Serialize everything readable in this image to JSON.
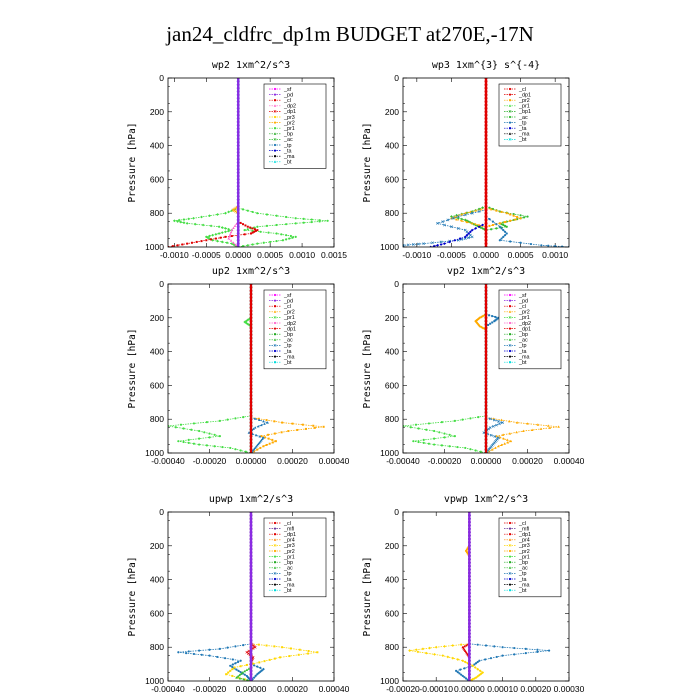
{
  "page": {
    "title": "jan24_cldfrc_dp1m  BUDGET at270E,-17N"
  },
  "colors": {
    "sf": "#ff00ff",
    "pd": "#8a2be2",
    "cl": "#e00000",
    "dp1": "#e00000",
    "dp2": "#ff66cc",
    "pr1": "#44dd44",
    "pr2": "#ffaa00",
    "pr3": "#ffd700",
    "pr4": "#ff8800",
    "bp": "#22aa22",
    "bp1": "#22aa22",
    "ac": "#33bb33",
    "tp": "#1f77b4",
    "ta": "#0000cc",
    "ma": "#000000",
    "bt": "#00dddd",
    "mfl": "#663399"
  },
  "chart_data": [
    {
      "type": "line",
      "title": "wp2   1xm^2/s^3",
      "ylabel": "Pressure [hPa]",
      "ylim": [
        1000,
        0
      ],
      "xlim": [
        -0.0011,
        0.0015
      ],
      "yticks": [
        "0",
        "200",
        "400",
        "600",
        "800",
        "1000"
      ],
      "xticks": [
        {
          "v": -0.001,
          "t": "-0.0010"
        },
        {
          "v": -0.0005,
          "t": "-0.0005"
        },
        {
          "v": 0,
          "t": "0.0000"
        },
        {
          "v": 0.0005,
          "t": "0.0005"
        },
        {
          "v": 0.001,
          "t": "0.0010"
        },
        {
          "v": 0.0015,
          "t": "0.0015"
        }
      ],
      "legend": [
        "_sf",
        "_pd",
        "_cl",
        "_dp2",
        "_dp1",
        "_pr3",
        "_pr2",
        "_pr1",
        "_bp",
        "_ac",
        "_tp",
        "_ta",
        "_ma",
        "_bt"
      ],
      "series": [
        {
          "key": "pr1",
          "p": [
            770,
            800,
            830,
            845,
            860,
            880,
            900,
            920,
            940,
            960,
            980,
            1000
          ],
          "x": [
            0,
            0.0003,
            0.0009,
            0.0014,
            0.0009,
            0.0003,
            0.0001,
            0.0006,
            0.0009,
            0.0007,
            0.0003,
            0
          ]
        },
        {
          "key": "pr1",
          "p": [
            770,
            800,
            830,
            845,
            860,
            880,
            900,
            920,
            940,
            960,
            980,
            1000
          ],
          "x": [
            0,
            -0.0002,
            -0.0007,
            -0.001,
            -0.0008,
            -0.0003,
            -0.0001,
            -0.0003,
            -0.0005,
            -0.0004,
            -0.0001,
            0
          ]
        },
        {
          "key": "cl",
          "p": [
            850,
            880,
            900,
            920,
            940,
            960,
            980,
            1000
          ],
          "x": [
            0,
            0.00015,
            0.0003,
            0.0002,
            -0.0002,
            -0.0005,
            -0.0008,
            -0.0011
          ]
        },
        {
          "key": "dp2",
          "p": [
            850,
            900,
            950,
            1000
          ],
          "x": [
            0,
            -0.0001,
            -0.00015,
            0
          ]
        },
        {
          "key": "pr2",
          "p": [
            760,
            780,
            800
          ],
          "x": [
            0,
            -8e-05,
            0
          ]
        },
        {
          "key": "bt",
          "p": [
            0,
            200,
            400,
            600,
            800,
            1000
          ],
          "x": [
            0,
            0,
            0,
            0,
            0,
            0
          ]
        },
        {
          "key": "pd",
          "p": [
            0,
            200,
            400,
            600,
            800,
            1000
          ],
          "x": [
            0,
            0,
            0,
            0,
            0,
            0
          ]
        }
      ]
    },
    {
      "type": "line",
      "title": "wp3   1xm^{3} s^{-4}",
      "ylabel": "Pressure [hPa]",
      "ylim": [
        1000,
        0
      ],
      "xlim": [
        -0.0012,
        0.0012
      ],
      "yticks": [
        "0",
        "200",
        "400",
        "600",
        "800",
        "1000"
      ],
      "xticks": [
        {
          "v": -0.001,
          "t": "-0.0010"
        },
        {
          "v": -0.0005,
          "t": "-0.0005"
        },
        {
          "v": 0,
          "t": "0.0000"
        },
        {
          "v": 0.0005,
          "t": "0.0005"
        },
        {
          "v": 0.001,
          "t": "0.0010"
        }
      ],
      "legend": [
        "_cl",
        "_dp1",
        "_pr2",
        "_pr1",
        "_bp1",
        "_ac",
        "_tp",
        "_ta",
        "_ma",
        "_bt"
      ],
      "series": [
        {
          "key": "ac",
          "p": [
            760,
            790,
            820,
            840,
            860,
            880,
            900
          ],
          "x": [
            0,
            0.0002,
            0.0006,
            0.0004,
            0.0002,
            0.0003,
            0
          ]
        },
        {
          "key": "ac",
          "p": [
            760,
            790,
            820,
            840,
            860,
            880,
            900
          ],
          "x": [
            0,
            -0.0002,
            -0.0005,
            -0.0003,
            -0.0002,
            -0.0001,
            0
          ]
        },
        {
          "key": "pr2",
          "p": [
            770,
            800,
            830,
            860,
            880
          ],
          "x": [
            0,
            0.0003,
            0.0005,
            0.0002,
            0
          ]
        },
        {
          "key": "pr2",
          "p": [
            770,
            800,
            830,
            860,
            880
          ],
          "x": [
            0,
            -0.0003,
            -0.0005,
            -0.0002,
            0
          ]
        },
        {
          "key": "tp",
          "p": [
            780,
            820,
            860,
            900,
            940,
            960,
            980,
            990,
            1000
          ],
          "x": [
            0,
            -0.0004,
            -0.0007,
            -0.0003,
            -0.0002,
            -0.0004,
            -0.0009,
            -0.0012,
            -0.0012
          ]
        },
        {
          "key": "tp",
          "p": [
            820,
            880,
            920,
            960,
            990,
            1000
          ],
          "x": [
            0,
            0.0002,
            0.0003,
            0.0002,
            0.0008,
            0.0012
          ]
        },
        {
          "key": "ta",
          "p": [
            860,
            900,
            940,
            980,
            1000
          ],
          "x": [
            0,
            -0.0002,
            -0.0003,
            -0.0006,
            -0.0008
          ]
        },
        {
          "key": "dp1",
          "p": [
            0,
            200,
            400,
            600,
            800,
            1000
          ],
          "x": [
            0,
            0,
            0,
            0,
            0,
            0
          ]
        },
        {
          "key": "cl",
          "p": [
            0,
            200,
            400,
            600,
            800,
            1000
          ],
          "x": [
            0,
            0,
            0,
            0,
            0,
            0
          ]
        }
      ]
    },
    {
      "type": "line",
      "title": "up2   1xm^2/s^3",
      "ylabel": "Pressure [hPa]",
      "ylim": [
        1000,
        0
      ],
      "xlim": [
        -0.0004,
        0.0004
      ],
      "yticks": [
        "0",
        "200",
        "400",
        "600",
        "800",
        "1000"
      ],
      "xticks": [
        {
          "v": -0.0004,
          "t": "-0.00040"
        },
        {
          "v": -0.0002,
          "t": "-0.00020"
        },
        {
          "v": 0,
          "t": "0.00000"
        },
        {
          "v": 0.0002,
          "t": "0.00020"
        },
        {
          "v": 0.0004,
          "t": "0.00040"
        }
      ],
      "legend": [
        "_sf",
        "_pd",
        "_cl",
        "_pr2",
        "_pr1",
        "_dp2",
        "_dp1",
        "_bp",
        "_ac",
        "_tp",
        "_ta",
        "_ma",
        "_bt"
      ],
      "series": [
        {
          "key": "pr1",
          "p": [
            780,
            810,
            840,
            870,
            900,
            930,
            950,
            970,
            1000
          ],
          "x": [
            0,
            -0.00015,
            -0.0004,
            -0.00025,
            -0.00015,
            -0.00035,
            -0.00025,
            -0.0001,
            0
          ]
        },
        {
          "key": "pr1",
          "p": [
            200,
            225,
            250
          ],
          "x": [
            0,
            -3e-05,
            0
          ]
        },
        {
          "key": "pr2",
          "p": [
            790,
            820,
            845,
            870,
            900,
            930,
            960,
            1000
          ],
          "x": [
            0,
            0.00015,
            0.00035,
            0.00018,
            5e-05,
            0.00012,
            6e-05,
            0
          ]
        },
        {
          "key": "tp",
          "p": [
            790,
            820,
            850,
            880,
            910,
            940,
            970,
            1000
          ],
          "x": [
            0,
            8e-05,
            2e-05,
            -1e-05,
            6e-05,
            4e-05,
            2e-05,
            0
          ]
        },
        {
          "key": "bt",
          "p": [
            0,
            200,
            400,
            600,
            800,
            1000
          ],
          "x": [
            0,
            0,
            0,
            0,
            0,
            0
          ]
        },
        {
          "key": "cl",
          "p": [
            0,
            200,
            400,
            600,
            800,
            1000
          ],
          "x": [
            0,
            0,
            0,
            0,
            0,
            0
          ]
        }
      ]
    },
    {
      "type": "line",
      "title": "vp2   1xm^2/s^3",
      "ylabel": "Pressure [hPa]",
      "ylim": [
        1000,
        0
      ],
      "xlim": [
        -0.0004,
        0.0004
      ],
      "yticks": [
        "0",
        "200",
        "400",
        "600",
        "800",
        "1000"
      ],
      "xticks": [
        {
          "v": -0.0004,
          "t": "-0.00040"
        },
        {
          "v": -0.0002,
          "t": "-0.00020"
        },
        {
          "v": 0,
          "t": "0.00000"
        },
        {
          "v": 0.0002,
          "t": "0.00020"
        },
        {
          "v": 0.0004,
          "t": "0.00040"
        }
      ],
      "legend": [
        "_sf",
        "_pd",
        "_cl",
        "_pr2",
        "_pr1",
        "_dp2",
        "_dp1",
        "_bp",
        "_ac",
        "_tp",
        "_ta",
        "_ma",
        "_bt"
      ],
      "series": [
        {
          "key": "pr1",
          "p": [
            780,
            810,
            840,
            870,
            900,
            930,
            950,
            970,
            1000
          ],
          "x": [
            0,
            -0.00015,
            -0.0004,
            -0.00025,
            -0.00015,
            -0.00035,
            -0.00025,
            -0.0001,
            0
          ]
        },
        {
          "key": "pr2",
          "p": [
            180,
            200,
            220,
            250,
            270
          ],
          "x": [
            0,
            -3e-05,
            -5e-05,
            -3e-05,
            0
          ]
        },
        {
          "key": "tp",
          "p": [
            180,
            200,
            220,
            250
          ],
          "x": [
            0,
            6e-05,
            4e-05,
            0
          ]
        },
        {
          "key": "pr2",
          "p": [
            790,
            820,
            845,
            870,
            900,
            930,
            960,
            1000
          ],
          "x": [
            0,
            0.00015,
            0.00035,
            0.00018,
            5e-05,
            0.00012,
            6e-05,
            0
          ]
        },
        {
          "key": "tp",
          "p": [
            790,
            820,
            850,
            880,
            910,
            940,
            970,
            1000
          ],
          "x": [
            0,
            8e-05,
            2e-05,
            -1e-05,
            6e-05,
            4e-05,
            2e-05,
            0
          ]
        },
        {
          "key": "bt",
          "p": [
            0,
            200,
            400,
            600,
            800,
            1000
          ],
          "x": [
            0,
            0,
            0,
            0,
            0,
            0
          ]
        },
        {
          "key": "cl",
          "p": [
            0,
            200,
            400,
            600,
            800,
            1000
          ],
          "x": [
            0,
            0,
            0,
            0,
            0,
            0
          ]
        }
      ]
    },
    {
      "type": "line",
      "title": "upwp   1xm^2/s^3",
      "ylabel": "Pressure [hPa]",
      "ylim": [
        1000,
        0
      ],
      "xlim": [
        -0.0004,
        0.0004
      ],
      "yticks": [
        "0",
        "200",
        "400",
        "600",
        "800",
        "1000"
      ],
      "xticks": [
        {
          "v": -0.0004,
          "t": "-0.00040"
        },
        {
          "v": -0.0002,
          "t": "-0.00020"
        },
        {
          "v": 0,
          "t": "0.00000"
        },
        {
          "v": 0.0002,
          "t": "0.00020"
        },
        {
          "v": 0.0004,
          "t": "0.00040"
        }
      ],
      "legend": [
        "_cl",
        "_mfl",
        "_dp1",
        "_pr4",
        "_pr3",
        "_pr2",
        "_pr1",
        "_bp",
        "_ac",
        "_tp",
        "_ta",
        "_ma",
        "_bt"
      ],
      "series": [
        {
          "key": "tp",
          "p": [
            780,
            810,
            830,
            850,
            880,
            910,
            940,
            970,
            1000
          ],
          "x": [
            0,
            -0.00015,
            -0.00035,
            -0.0002,
            -5e-05,
            -0.0001,
            -6e-05,
            -2e-05,
            0
          ]
        },
        {
          "key": "tp",
          "p": [
            900,
            930,
            960,
            1000
          ],
          "x": [
            0,
            6e-05,
            3e-05,
            0
          ]
        },
        {
          "key": "pr3",
          "p": [
            780,
            800,
            830,
            860,
            890,
            920,
            960,
            1000
          ],
          "x": [
            0,
            0.00015,
            0.00032,
            0.00014,
            4e-05,
            -8e-05,
            -0.00012,
            0
          ]
        },
        {
          "key": "ac",
          "p": [
            920,
            950,
            980,
            1000
          ],
          "x": [
            0,
            -4e-05,
            -7e-05,
            0
          ]
        },
        {
          "key": "cl",
          "p": [
            780,
            800,
            830,
            860,
            890
          ],
          "x": [
            0,
            2e-05,
            -2e-05,
            1e-05,
            0
          ]
        },
        {
          "key": "mfl",
          "p": [
            0,
            200,
            400,
            600,
            800,
            1000
          ],
          "x": [
            0,
            0,
            0,
            0,
            0,
            0
          ]
        },
        {
          "key": "pd",
          "p": [
            0,
            200,
            400,
            600,
            800,
            1000
          ],
          "x": [
            0,
            0,
            0,
            0,
            0,
            0
          ]
        }
      ]
    },
    {
      "type": "line",
      "title": "vpwp   1xm^2/s^3",
      "ylabel": "Pressure [hPa]",
      "ylim": [
        1000,
        0
      ],
      "xlim": [
        -0.0002,
        0.0003
      ],
      "yticks": [
        "0",
        "200",
        "400",
        "600",
        "800",
        "1000"
      ],
      "xticks": [
        {
          "v": -0.0002,
          "t": "-0.00020"
        },
        {
          "v": -0.0001,
          "t": "-0.00010"
        },
        {
          "v": 0,
          "t": "0.00000"
        },
        {
          "v": 0.0001,
          "t": "0.00010"
        },
        {
          "v": 0.0002,
          "t": "0.00020"
        },
        {
          "v": 0.0003,
          "t": "0.00030"
        }
      ],
      "legend": [
        "_cl",
        "_mfl",
        "_dp1",
        "_pr4",
        "_pr3",
        "_pr2",
        "_pr1",
        "_bp",
        "_ac",
        "_tp",
        "_ta",
        "_ma",
        "_bt"
      ],
      "series": [
        {
          "key": "tp",
          "p": [
            780,
            800,
            820,
            850,
            880,
            910,
            940,
            970,
            1000
          ],
          "x": [
            0,
            0.0001,
            0.00024,
            0.0001,
            3e-05,
            1e-05,
            -4e-05,
            -2e-05,
            0
          ]
        },
        {
          "key": "pr3",
          "p": [
            780,
            800,
            820,
            850,
            880,
            910,
            950,
            980,
            1000
          ],
          "x": [
            0,
            -0.0001,
            -0.00018,
            -8e-05,
            -2e-05,
            1e-05,
            4e-05,
            2e-05,
            0
          ]
        },
        {
          "key": "pr2",
          "p": [
            200,
            230,
            260
          ],
          "x": [
            0,
            -1e-05,
            0
          ]
        },
        {
          "key": "cl",
          "p": [
            780,
            800,
            830,
            860
          ],
          "x": [
            0,
            -2e-05,
            -1e-05,
            0
          ]
        },
        {
          "key": "mfl",
          "p": [
            0,
            200,
            400,
            600,
            800,
            1000
          ],
          "x": [
            0,
            0,
            0,
            0,
            0,
            0
          ]
        },
        {
          "key": "pd",
          "p": [
            0,
            200,
            400,
            600,
            800,
            1000
          ],
          "x": [
            0,
            0,
            0,
            0,
            0,
            0
          ]
        }
      ]
    }
  ]
}
